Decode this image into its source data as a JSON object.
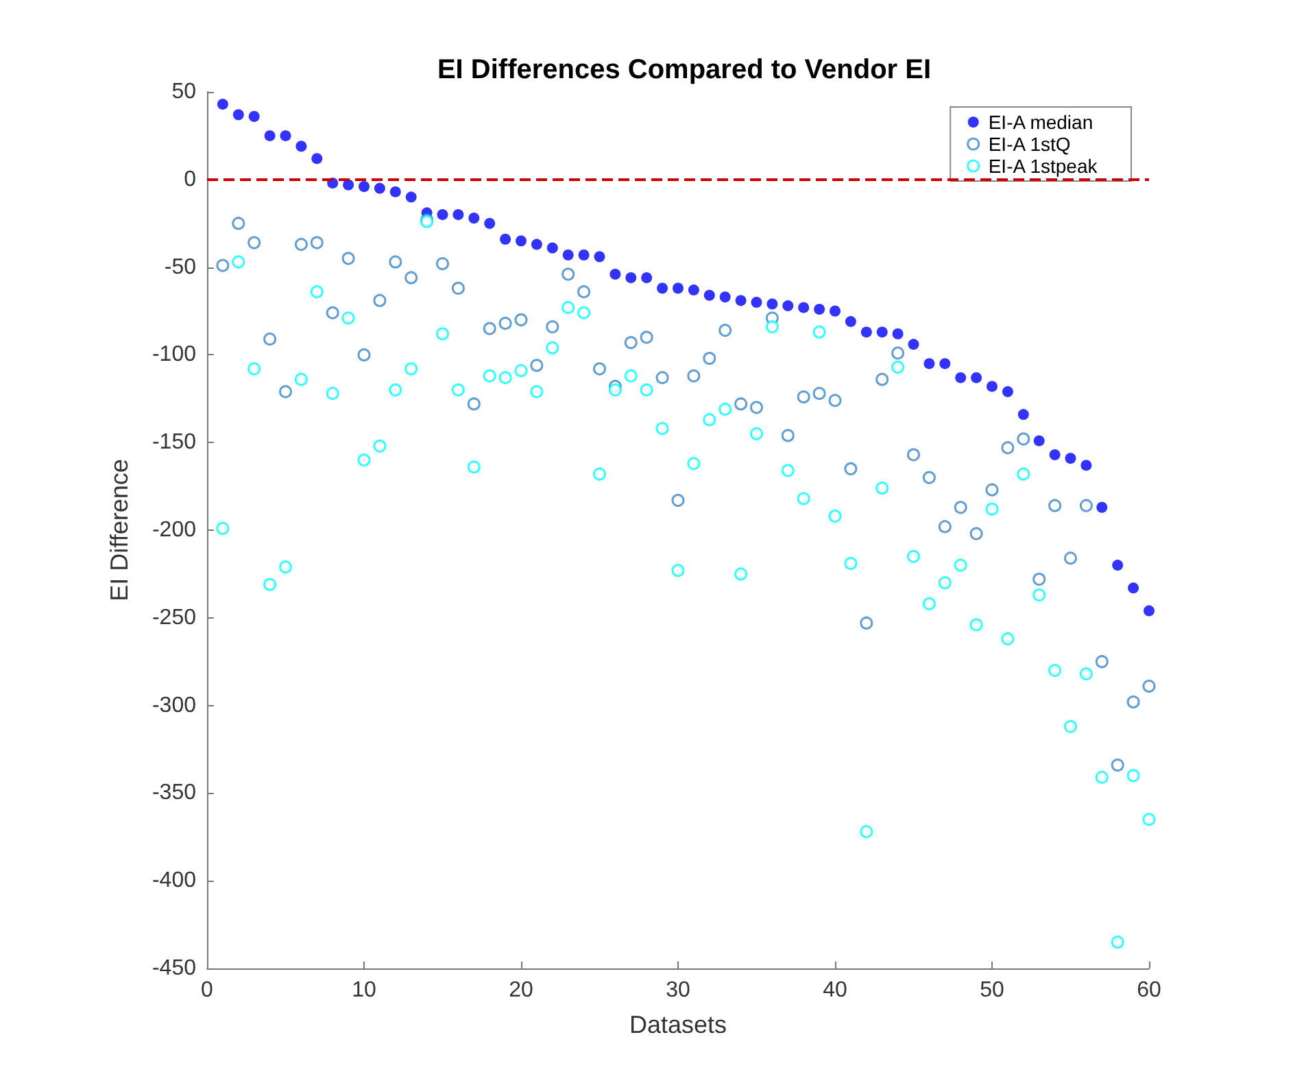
{
  "chart_data": {
    "type": "scatter",
    "title": "EI Differences Compared to Vendor EI",
    "xlabel": "Datasets",
    "ylabel": "EI Difference",
    "x": [
      1,
      2,
      3,
      4,
      5,
      6,
      7,
      8,
      9,
      10,
      11,
      12,
      13,
      14,
      15,
      16,
      17,
      18,
      19,
      20,
      21,
      22,
      23,
      24,
      25,
      26,
      27,
      28,
      29,
      30,
      31,
      32,
      33,
      34,
      35,
      36,
      37,
      38,
      39,
      40,
      41,
      42,
      43,
      44,
      45,
      46,
      47,
      48,
      49,
      50,
      51,
      52,
      53,
      54,
      55,
      56,
      57,
      58,
      59,
      60
    ],
    "series": [
      {
        "name": "EI-A median",
        "color": "#0000ff",
        "marker": "circle",
        "values": [
          43,
          37,
          36,
          25,
          25,
          19,
          12,
          -2,
          -3,
          -4,
          -5,
          -7,
          -10,
          -19,
          -20,
          -20,
          -22,
          -25,
          -34,
          -35,
          -37,
          -39,
          -43,
          -43,
          -44,
          -54,
          -56,
          -56,
          -62,
          -62,
          -63,
          -66,
          -67,
          -69,
          -70,
          -71,
          -72,
          -73,
          -74,
          -75,
          -81,
          -87,
          -87,
          -88,
          -94,
          -105,
          -105,
          -113,
          -113,
          -118,
          -121,
          -134,
          -149,
          -157,
          -159,
          -163,
          -187,
          -220,
          -233,
          -246
        ]
      },
      {
        "name": "EI-A 1stQ",
        "color": "#3a86c8",
        "values": [
          -49,
          -25,
          -36,
          -91,
          -121,
          -37,
          -36,
          -76,
          -45,
          -100,
          -69,
          -47,
          -56,
          -23,
          -48,
          -62,
          -128,
          -85,
          -82,
          -80,
          -106,
          -84,
          -54,
          -64,
          -108,
          -118,
          -93,
          -90,
          -113,
          -183,
          -112,
          -102,
          -86,
          -128,
          -130,
          -79,
          -146,
          -124,
          -122,
          -126,
          -165,
          -253,
          -114,
          -99,
          -157,
          -170,
          -198,
          -187,
          -202,
          -177,
          -153,
          -148,
          -228,
          -186,
          -216,
          -186,
          -275,
          -334,
          -298,
          -289
        ]
      },
      {
        "name": "EI-A 1stpeak",
        "color": "#00ffff",
        "values": [
          -199,
          -47,
          -108,
          -231,
          -221,
          -114,
          -64,
          -122,
          -79,
          -160,
          -152,
          -120,
          -108,
          -24,
          -88,
          -120,
          -164,
          -112,
          -113,
          -109,
          -121,
          -96,
          -73,
          -76,
          -168,
          -120,
          -112,
          -120,
          -142,
          -223,
          -162,
          -137,
          -131,
          -225,
          -145,
          -84,
          -166,
          -182,
          -87,
          -192,
          -219,
          -372,
          -176,
          -107,
          -215,
          -242,
          -230,
          -220,
          -254,
          -188,
          -262,
          -168,
          -237,
          -280,
          -312,
          -282,
          -341,
          -435,
          -340,
          -365
        ]
      }
    ],
    "xlim": [
      0,
      60
    ],
    "xticks": [
      0,
      10,
      20,
      30,
      40,
      50,
      60
    ],
    "ylim": [
      -450,
      50
    ],
    "yticks": [
      -450,
      -400,
      -350,
      -300,
      -250,
      -200,
      -150,
      -100,
      -50,
      0,
      50
    ],
    "ref_lines": [
      {
        "axis": "y",
        "value": 0,
        "color": "#cc0000",
        "line_style": "dashed"
      }
    ],
    "legend": "top right",
    "grid": false,
    "marker": "circle"
  }
}
